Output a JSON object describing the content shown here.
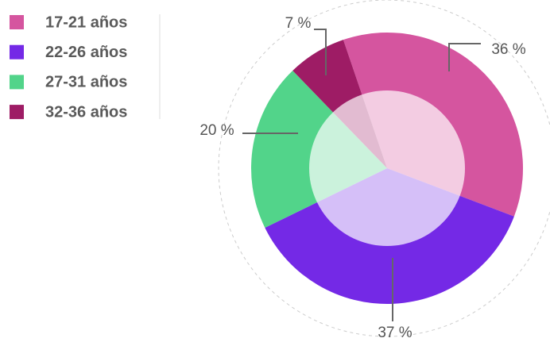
{
  "chart_data": {
    "type": "pie",
    "categories": [
      "17-21 años",
      "22-26 años",
      "27-31 años",
      "32-36 años"
    ],
    "values": [
      36,
      37,
      20,
      7
    ],
    "value_labels": [
      "36 %",
      "37 %",
      "20 %",
      "7 %"
    ],
    "colors": [
      "#d5559f",
      "#7429e6",
      "#52d48a",
      "#9e1c65"
    ],
    "legend": "top-left"
  }
}
